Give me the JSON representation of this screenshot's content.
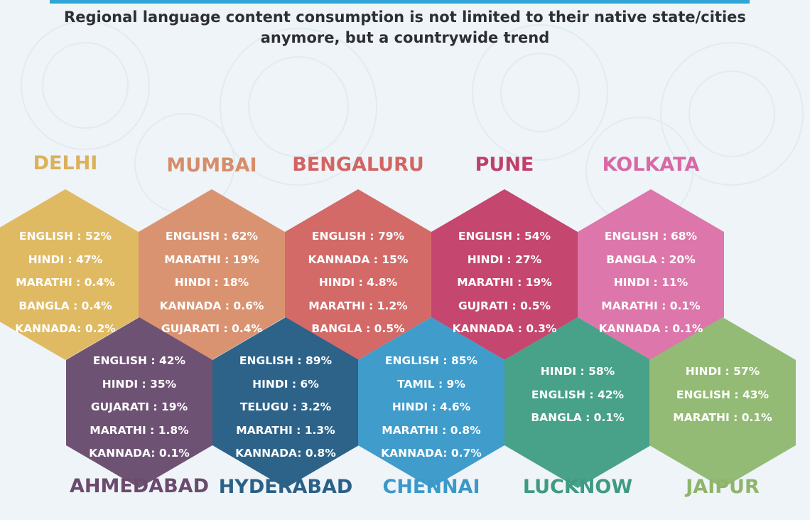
{
  "header": {
    "accent_color": "#30a4d7",
    "title_line1": "Regional language content consumption is not limited to their native state/cities",
    "title_line2": "anymore, but a countrywide trend"
  },
  "cities": [
    {
      "name": "DELHI",
      "name_color": "#dcb15a",
      "hex_color": "#e0ba62",
      "stats": [
        "ENGLISH : 52%",
        "HINDI : 47%",
        "MARATHI : 0.4%",
        "BANGLA : 0.4%",
        "KANNADA: 0.2%"
      ]
    },
    {
      "name": "MUMBAI",
      "name_color": "#d88c6a",
      "hex_color": "#da9371",
      "stats": [
        "ENGLISH : 62%",
        "MARATHI : 19%",
        "HINDI : 18%",
        "KANNADA : 0.6%",
        "GUJARATI : 0.4%"
      ]
    },
    {
      "name": "BENGALURU",
      "name_color": "#d26562",
      "hex_color": "#d36a67",
      "stats": [
        "ENGLISH : 79%",
        "KANNADA : 15%",
        "HINDI : 4.8%",
        "MARATHI : 1.2%",
        "BANGLA : 0.5%"
      ]
    },
    {
      "name": "PUNE",
      "name_color": "#c1406a",
      "hex_color": "#c5466e",
      "stats": [
        "ENGLISH : 54%",
        "HINDI : 27%",
        "MARATHI : 19%",
        "GUJRATI : 0.5%",
        "KANNADA : 0.3%"
      ]
    },
    {
      "name": "KOLKATA",
      "name_color": "#d968a5",
      "hex_color": "#dd76aa",
      "stats": [
        "ENGLISH : 68%",
        "BANGLA : 20%",
        "HINDI : 11%",
        "MARATHI : 0.1%",
        "KANNADA : 0.1%"
      ]
    },
    {
      "name": "AHMEDABAD",
      "name_color": "#6b4a6e",
      "hex_color": "#6e5273",
      "stats": [
        "ENGLISH : 42%",
        "HINDI : 35%",
        "GUJARATI : 19%",
        "MARATHI : 1.8%",
        "KANNADA: 0.1%"
      ]
    },
    {
      "name": "HYDERABAD",
      "name_color": "#2b6087",
      "hex_color": "#2d6289",
      "stats": [
        "ENGLISH : 89%",
        "HINDI : 6%",
        "TELUGU : 3.2%",
        "MARATHI : 1.3%",
        "KANNADA: 0.8%"
      ]
    },
    {
      "name": "CHENNAI",
      "name_color": "#3c98c8",
      "hex_color": "#3f9ccb",
      "stats": [
        "ENGLISH : 85%",
        "TAMIL : 9%",
        "HINDI : 4.6%",
        "MARATHI : 0.8%",
        "KANNADA: 0.7%"
      ]
    },
    {
      "name": "LUCKNOW",
      "name_color": "#3e9a83",
      "hex_color": "#48a189",
      "stats": [
        "HINDI : 58%",
        "ENGLISH : 42%",
        "BANGLA : 0.1%"
      ]
    },
    {
      "name": "JAIPUR",
      "name_color": "#8fb46a",
      "hex_color": "#94bb76",
      "stats": [
        "HINDI : 57%",
        "ENGLISH : 43%",
        "MARATHI : 0.1%"
      ]
    }
  ]
}
